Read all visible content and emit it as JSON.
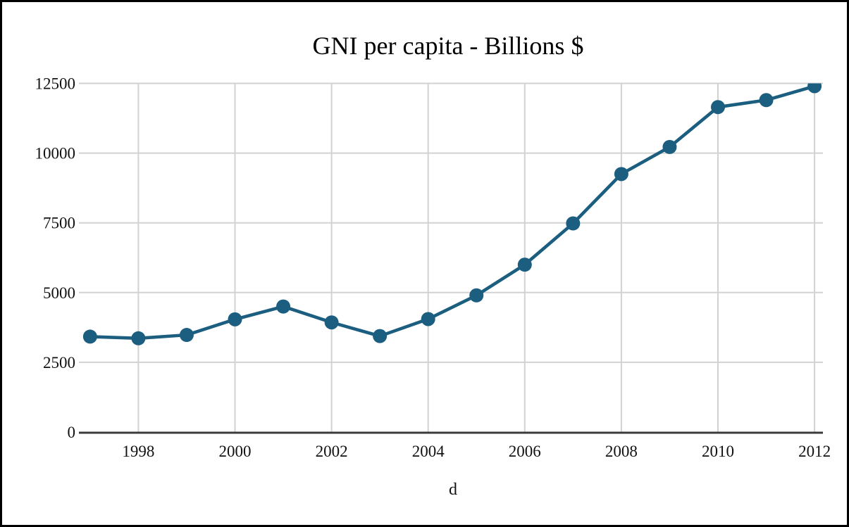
{
  "chart_data": {
    "type": "line",
    "title": "GNI per capita - Billions $",
    "xlabel": "d",
    "ylabel": "",
    "x": [
      1997,
      1998,
      1999,
      2000,
      2001,
      2002,
      2003,
      2004,
      2005,
      2006,
      2007,
      2008,
      2009,
      2010,
      2011,
      2012
    ],
    "values": [
      3420,
      3360,
      3480,
      4040,
      4500,
      3930,
      3440,
      4050,
      4900,
      6000,
      7480,
      9250,
      10220,
      11650,
      11900,
      12400
    ],
    "ylim": [
      0,
      12500
    ],
    "yticks": [
      0,
      2500,
      5000,
      7500,
      10000,
      12500
    ],
    "xticks": [
      1998,
      2000,
      2002,
      2004,
      2006,
      2008,
      2010,
      2012
    ],
    "grid": true,
    "legend": false,
    "marker": "circle",
    "colors": {
      "series": "#1b5e80",
      "grid": "#d2d2d2",
      "axis": "#3b3b3b",
      "text": "#111111",
      "background": "#ffffff",
      "border": "#000000"
    }
  }
}
